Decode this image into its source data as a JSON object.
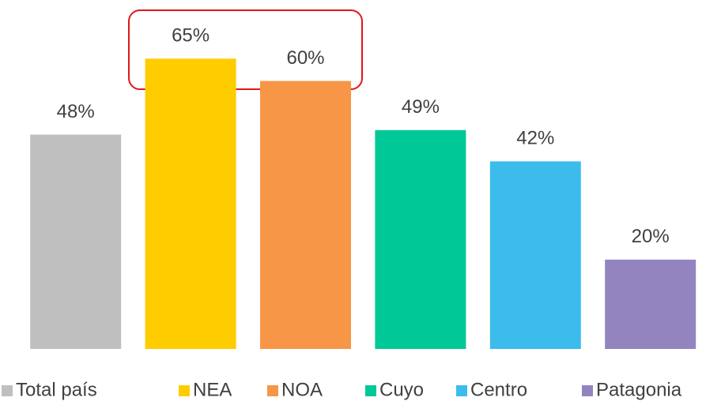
{
  "chart_data": {
    "type": "bar",
    "categories": [
      "Total país",
      "NEA",
      "NOA",
      "Cuyo",
      "Centro",
      "Patagonia"
    ],
    "values": [
      48,
      65,
      60,
      49,
      42,
      20
    ],
    "value_labels": [
      "48%",
      "65%",
      "60%",
      "49%",
      "42%",
      "20%"
    ],
    "colors": [
      "#bfbfbf",
      "#ffcc00",
      "#f79646",
      "#00c896",
      "#3bbced",
      "#9384bf"
    ],
    "ylim": [
      0,
      70
    ],
    "legend": "bottom"
  }
}
